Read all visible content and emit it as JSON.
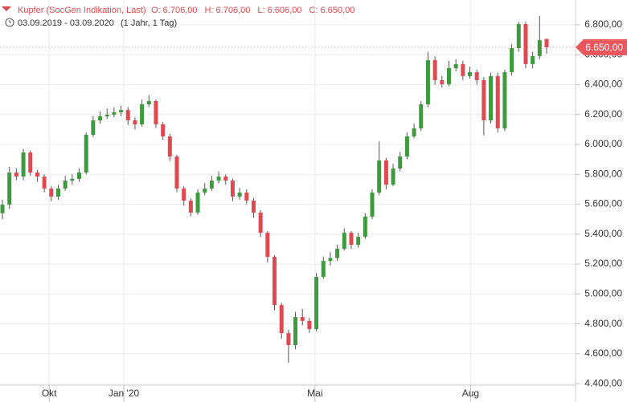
{
  "chart_data": {
    "type": "candlestick",
    "title": "Kupfer (SocGen Indikation, Last)",
    "ohlc_labels": [
      "O: 6.706,00",
      "H: 6.706,00",
      "L: 6.606,00",
      "C: 6.650,00"
    ],
    "date_range": "03.09.2019 - 03.09.2020",
    "period": "(1 Jahr, 1 Tag)",
    "up_color": "#3d9a3d",
    "down_color": "#e0494f",
    "grid": true,
    "xlim": [
      -0.35,
      82.15
    ],
    "xticks": [
      {
        "value": 6.7,
        "label": "Okt"
      },
      {
        "value": 17.4,
        "label": "Jan '20"
      },
      {
        "value": 44.8,
        "label": "Mai"
      },
      {
        "value": 67.1,
        "label": "Aug"
      }
    ],
    "ylim": [
      4390,
      6966
    ],
    "yticks": [
      {
        "value": 4400,
        "label": "4.400,00"
      },
      {
        "value": 4600,
        "label": "4.600,00"
      },
      {
        "value": 4800,
        "label": "4.800,00"
      },
      {
        "value": 5000,
        "label": "5.000,00"
      },
      {
        "value": 5200,
        "label": "5.200,00"
      },
      {
        "value": 5400,
        "label": "5.400,00"
      },
      {
        "value": 5600,
        "label": "5.600,00"
      },
      {
        "value": 5800,
        "label": "5.800,00"
      },
      {
        "value": 6000,
        "label": "6.000,00"
      },
      {
        "value": 6200,
        "label": "6.200,00"
      },
      {
        "value": 6400,
        "label": "6.400,00"
      },
      {
        "value": 6600,
        "label": "6.600,00"
      },
      {
        "value": 6800,
        "label": "6.800,00"
      }
    ],
    "last_price": {
      "value": 6650,
      "label": "6.650,00"
    },
    "open": [
      5540,
      5597,
      5812,
      5785,
      5946,
      5812,
      5785,
      5705,
      5651,
      5705,
      5758,
      5770,
      5812,
      6064,
      6161,
      6188,
      6199,
      6215,
      6230,
      6161,
      6134,
      6268,
      6290,
      6134,
      6054,
      5919,
      5705,
      5624,
      5544,
      5678,
      5705,
      5758,
      5785,
      5758,
      5651,
      5678,
      5624,
      5544,
      5409,
      5248,
      4926,
      4738,
      4658,
      4846,
      4820,
      4765,
      5114,
      5221,
      5240,
      5302,
      5409,
      5329,
      5382,
      5517,
      5678,
      5893,
      5731,
      5839,
      5919,
      6054,
      6107,
      6268,
      6564,
      6430,
      6403,
      6510,
      6537,
      6457,
      6483,
      6430,
      6161,
      6457,
      6107,
      6483,
      6644,
      6805,
      6537,
      6591,
      6706
    ],
    "high": [
      5630,
      5850,
      5840,
      5970,
      5960,
      5830,
      5800,
      5720,
      5730,
      5790,
      5800,
      5840,
      6080,
      6190,
      6220,
      6240,
      6250,
      6260,
      6250,
      6180,
      6300,
      6330,
      6300,
      6150,
      6070,
      5930,
      5720,
      5640,
      5700,
      5740,
      5790,
      5820,
      5800,
      5770,
      5710,
      5700,
      5640,
      5560,
      5420,
      5260,
      4940,
      4760,
      4880,
      4900,
      4840,
      5140,
      5250,
      5280,
      5330,
      5440,
      5420,
      5410,
      5540,
      5700,
      6020,
      5910,
      5870,
      5950,
      6080,
      6140,
      6290,
      6620,
      6590,
      6460,
      6560,
      6570,
      6560,
      6520,
      6500,
      6450,
      6480,
      6480,
      6500,
      6670,
      6820,
      6820,
      6620,
      6860,
      6706
    ],
    "low": [
      5500,
      5570,
      5760,
      5760,
      5790,
      5750,
      5680,
      5620,
      5630,
      5690,
      5730,
      5750,
      5800,
      6050,
      6140,
      6170,
      6180,
      6190,
      6130,
      6100,
      6120,
      6250,
      6110,
      6030,
      5890,
      5680,
      5590,
      5520,
      5530,
      5660,
      5690,
      5740,
      5730,
      5620,
      5630,
      5600,
      5510,
      5380,
      5210,
      4890,
      4700,
      4540,
      4630,
      4790,
      4740,
      4750,
      5100,
      5190,
      5220,
      5290,
      5300,
      5310,
      5370,
      5500,
      5660,
      5700,
      5720,
      5820,
      5900,
      6040,
      6090,
      6250,
      6400,
      6380,
      6390,
      6490,
      6430,
      6440,
      6400,
      6060,
      6140,
      6080,
      6090,
      6460,
      6620,
      6510,
      6510,
      6570,
      6606
    ],
    "close": [
      5597,
      5812,
      5785,
      5946,
      5812,
      5785,
      5705,
      5651,
      5705,
      5758,
      5770,
      5812,
      6064,
      6161,
      6188,
      6199,
      6215,
      6230,
      6161,
      6134,
      6268,
      6290,
      6134,
      6054,
      5919,
      5705,
      5624,
      5544,
      5678,
      5705,
      5758,
      5785,
      5758,
      5651,
      5678,
      5624,
      5544,
      5409,
      5248,
      4926,
      4738,
      4658,
      4846,
      4820,
      4765,
      5114,
      5221,
      5240,
      5302,
      5409,
      5329,
      5382,
      5517,
      5678,
      5893,
      5731,
      5839,
      5919,
      6054,
      6107,
      6268,
      6564,
      6430,
      6403,
      6510,
      6537,
      6457,
      6483,
      6430,
      6161,
      6457,
      6107,
      6483,
      6644,
      6805,
      6537,
      6591,
      6698,
      6650
    ]
  }
}
